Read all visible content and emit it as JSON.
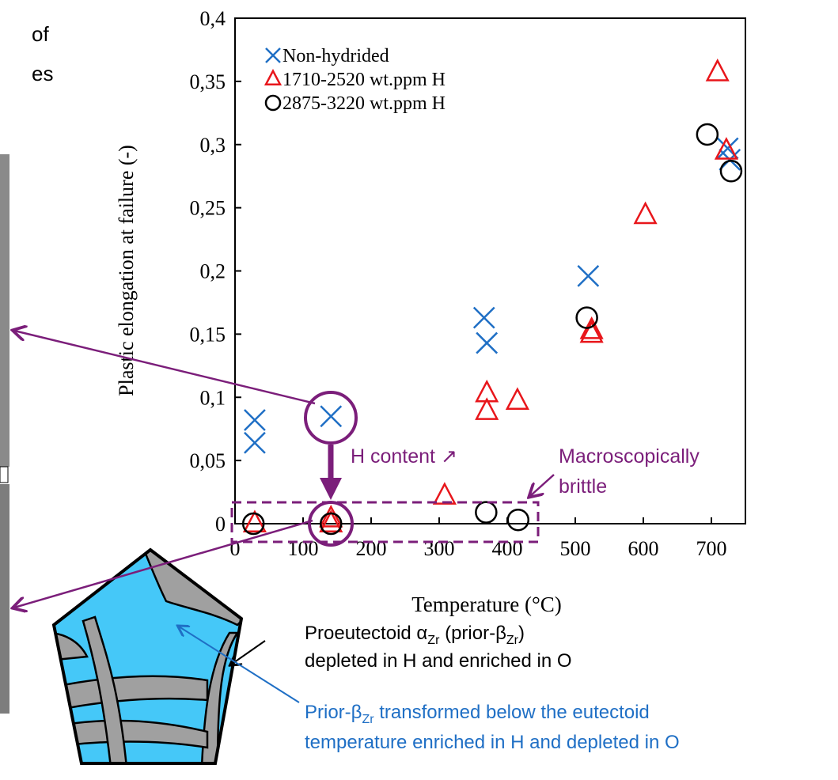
{
  "chart_data": {
    "type": "scatter",
    "ylabel": "Plastic elongation at failure (-)",
    "xlabel": "Temperature (°C)",
    "xlim": [
      0,
      750
    ],
    "ylim": [
      0,
      0.4
    ],
    "xticks": [
      0,
      100,
      200,
      300,
      400,
      500,
      600,
      700
    ],
    "yticks": [
      0,
      {
        "value": 0.05,
        "label": "0,05"
      },
      {
        "value": 0.1,
        "label": "0,1"
      },
      {
        "value": 0.15,
        "label": "0,15"
      },
      {
        "value": 0.2,
        "label": "0,2"
      },
      {
        "value": 0.25,
        "label": "0,25"
      },
      {
        "value": 0.3,
        "label": "0,3"
      },
      {
        "value": 0.35,
        "label": "0,35"
      },
      {
        "value": 0.4,
        "label": "0,4"
      }
    ],
    "legend": "upper left",
    "series": [
      {
        "name": "Non-hydrided",
        "color": "#1f6fc5",
        "marker": "x",
        "x": [
          29,
          29,
          141,
          366,
          370,
          519,
          724,
          727
        ],
        "y": [
          0.082,
          0.064,
          0.085,
          0.163,
          0.143,
          0.196,
          0.297,
          0.288
        ]
      },
      {
        "name": "1710-2520 wt.ppm H",
        "color": "#e8161b",
        "marker": "triangle",
        "x": [
          29,
          141,
          141,
          308,
          370,
          370,
          415,
          524,
          524,
          603,
          709,
          722
        ],
        "y": [
          0,
          0.004,
          0,
          0.022,
          0.103,
          0.089,
          0.097,
          0.153,
          0.15,
          0.244,
          0.357,
          0.295
        ]
      },
      {
        "name": "2875-3220 wt.ppm H",
        "color": "#000000",
        "marker": "circle",
        "x": [
          27,
          141,
          369,
          416,
          517,
          694,
          729
        ],
        "y": [
          0,
          0,
          0.009,
          0.003,
          0.163,
          0.308,
          0.279
        ]
      }
    ],
    "annotations": {
      "h_content": "H content ↗",
      "brittle": [
        "Macroscopically",
        "brittle"
      ],
      "proeutectoid": [
        "Proeutectoid α",
        "Zr",
        " (prior-β",
        "Zr",
        ")"
      ],
      "proeutectoid_2": "depleted in H and enriched in O",
      "prior_beta": [
        "Prior-β",
        "Zr",
        " transformed below the eutectoid"
      ],
      "prior_beta_2": "temperature enriched in H and depleted in O",
      "cut_text": [
        "of",
        "es"
      ]
    }
  }
}
